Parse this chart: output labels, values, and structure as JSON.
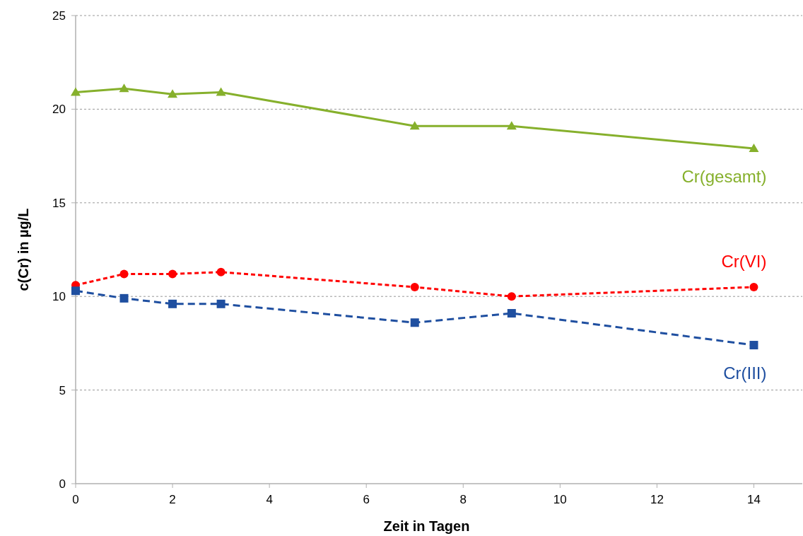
{
  "chart_data": {
    "type": "line",
    "xlabel": "Zeit in Tagen",
    "ylabel": "c(Cr) in µg/L",
    "x": [
      0,
      1,
      2,
      3,
      7,
      9,
      14
    ],
    "xlim": [
      0,
      15
    ],
    "xticks": [
      0,
      2,
      4,
      6,
      8,
      10,
      12,
      14
    ],
    "ylim": [
      0,
      25
    ],
    "yticks": [
      0,
      5,
      10,
      15,
      20,
      25
    ],
    "grid": "y",
    "series": [
      {
        "name": "Cr(gesamt)",
        "color": "#86b02c",
        "marker": "triangle",
        "line_style": "solid",
        "values": [
          20.9,
          21.1,
          20.8,
          20.9,
          19.1,
          19.1,
          17.9
        ]
      },
      {
        "name": "Cr(VI)",
        "color": "#ff0000",
        "marker": "circle",
        "line_style": "dotted",
        "values": [
          10.6,
          11.2,
          11.2,
          11.3,
          10.5,
          10.0,
          10.5
        ]
      },
      {
        "name": "Cr(III)",
        "color": "#1f4fa0",
        "marker": "square",
        "line_style": "dashed",
        "values": [
          10.3,
          9.9,
          9.6,
          9.6,
          8.6,
          9.1,
          7.4
        ]
      }
    ]
  }
}
